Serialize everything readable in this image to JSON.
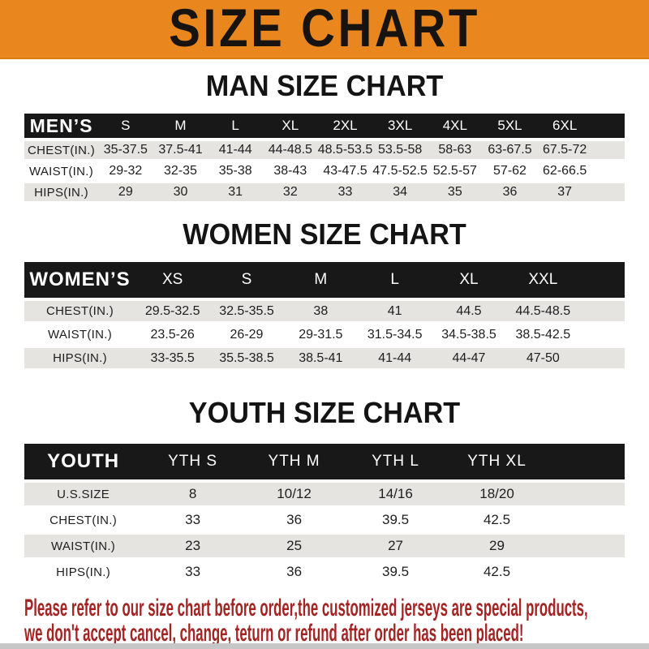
{
  "banner": {
    "title": "SIZE CHART"
  },
  "sections": [
    {
      "title": "MAN SIZE CHART",
      "header_label": "MEN’S",
      "columns": [
        "S",
        "M",
        "L",
        "XL",
        "2XL",
        "3XL",
        "4XL",
        "5XL",
        "6XL"
      ],
      "rows": [
        {
          "label": "CHEST(IN.)",
          "values": [
            "35-37.5",
            "37.5-41",
            "41-44",
            "44-48.5",
            "48.5-53.5",
            "53.5-58",
            "58-63",
            "63-67.5",
            "67.5-72"
          ]
        },
        {
          "label": "WAIST(IN.)",
          "values": [
            "29-32",
            "32-35",
            "35-38",
            "38-43",
            "43-47.5",
            "47.5-52.5",
            "52.5-57",
            "57-62",
            "62-66.5"
          ]
        },
        {
          "label": "HIPS(IN.)",
          "values": [
            "29",
            "30",
            "31",
            "32",
            "33",
            "34",
            "35",
            "36",
            "37"
          ]
        }
      ]
    },
    {
      "title": "WOMEN SIZE CHART",
      "header_label": "WOMEN’S",
      "columns": [
        "XS",
        "S",
        "M",
        "L",
        "XL",
        "XXL"
      ],
      "rows": [
        {
          "label": "CHEST(IN.)",
          "values": [
            "29.5-32.5",
            "32.5-35.5",
            "38",
            "41",
            "44.5",
            "44.5-48.5"
          ]
        },
        {
          "label": "WAIST(IN.)",
          "values": [
            "23.5-26",
            "26-29",
            "29-31.5",
            "31.5-34.5",
            "34.5-38.5",
            "38.5-42.5"
          ]
        },
        {
          "label": "HIPS(IN.)",
          "values": [
            "33-35.5",
            "35.5-38.5",
            "38.5-41",
            "41-44",
            "44-47",
            "47-50"
          ]
        }
      ]
    },
    {
      "title": "YOUTH SIZE CHART",
      "header_label": "YOUTH",
      "columns": [
        "YTH S",
        "YTH M",
        "YTH L",
        "YTH XL"
      ],
      "rows": [
        {
          "label": "U.S.SIZE",
          "values": [
            "8",
            "10/12",
            "14/16",
            "18/20"
          ]
        },
        {
          "label": "CHEST(IN.)",
          "values": [
            "33",
            "36",
            "39.5",
            "42.5"
          ]
        },
        {
          "label": "WAIST(IN.)",
          "values": [
            "23",
            "25",
            "27",
            "29"
          ]
        },
        {
          "label": "HIPS(IN.)",
          "values": [
            "33",
            "36",
            "39.5",
            "42.5"
          ]
        }
      ]
    }
  ],
  "disclaimer": {
    "line1": "Please refer to our size chart before order,the customized jerseys are special products,",
    "line2": "we don't accept cancel, change, teturn or refund after order has been placed!"
  },
  "colors": {
    "banner_orange": "#E9871E",
    "header_bar_black": "#181818",
    "row_gray": "#E5E4E1",
    "disclaimer_red": "#A32423"
  }
}
